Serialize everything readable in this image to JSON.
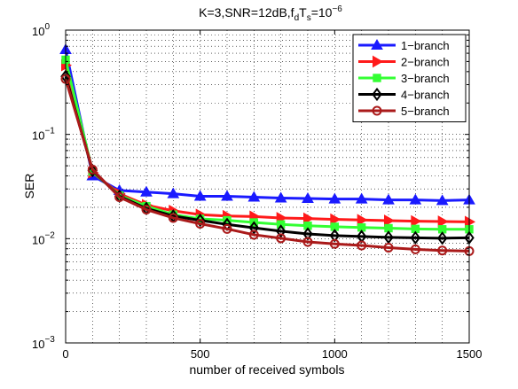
{
  "chart_data": {
    "type": "line",
    "title": {
      "main": "K=3,SNR=12dB,f",
      "sub1": "d",
      "mid": "T",
      "sub2": "s",
      "eq": "=10",
      "sup": "−6"
    },
    "xlabel": "number of received symbols",
    "ylabel": "SER",
    "xlim": [
      0,
      1500
    ],
    "ylim": [
      0.001,
      1
    ],
    "yscale": "log",
    "grid": true,
    "legend_position": "top-right",
    "x_ticks": [
      "0",
      "500",
      "1000",
      "1500"
    ],
    "x_tick_values": [
      0,
      500,
      1000,
      1500
    ],
    "y_ticks": [
      {
        "base": "10",
        "exp": "0",
        "value": 1
      },
      {
        "base": "10",
        "exp": "−1",
        "value": 0.1
      },
      {
        "base": "10",
        "exp": "−2",
        "value": 0.01
      },
      {
        "base": "10",
        "exp": "−3",
        "value": 0.001
      }
    ],
    "x": [
      0,
      100,
      200,
      300,
      400,
      500,
      600,
      700,
      800,
      900,
      1000,
      1100,
      1200,
      1300,
      1400,
      1500
    ],
    "series": [
      {
        "name": "1−branch",
        "color": "#1a1aff",
        "marker": "triangle-up",
        "values": [
          0.65,
          0.04,
          0.029,
          0.028,
          0.027,
          0.0255,
          0.0255,
          0.025,
          0.0245,
          0.0243,
          0.024,
          0.024,
          0.0235,
          0.0235,
          0.0232,
          0.0235
        ]
      },
      {
        "name": "2−branch",
        "color": "#ff1a1a",
        "marker": "triangle-right",
        "values": [
          0.46,
          0.043,
          0.027,
          0.021,
          0.0185,
          0.017,
          0.0165,
          0.0163,
          0.0158,
          0.0156,
          0.0153,
          0.0151,
          0.0149,
          0.0147,
          0.0146,
          0.0145
        ]
      },
      {
        "name": "3−branch",
        "color": "#33ff33",
        "marker": "square",
        "values": [
          0.52,
          0.044,
          0.026,
          0.0205,
          0.017,
          0.0155,
          0.015,
          0.0143,
          0.0137,
          0.0133,
          0.013,
          0.0128,
          0.0126,
          0.0124,
          0.0123,
          0.0123
        ]
      },
      {
        "name": "4−branch",
        "color": "#000000",
        "marker": "diamond",
        "values": [
          0.36,
          0.045,
          0.0255,
          0.0195,
          0.0165,
          0.015,
          0.0137,
          0.0127,
          0.0118,
          0.0111,
          0.0107,
          0.0105,
          0.0103,
          0.0102,
          0.0101,
          0.0102
        ]
      },
      {
        "name": "5−branch",
        "color": "#aa1a1a",
        "marker": "circle",
        "values": [
          0.34,
          0.046,
          0.025,
          0.019,
          0.0158,
          0.0139,
          0.0124,
          0.0109,
          0.0101,
          0.0093,
          0.0089,
          0.0086,
          0.0082,
          0.0079,
          0.0077,
          0.0076
        ]
      }
    ]
  }
}
